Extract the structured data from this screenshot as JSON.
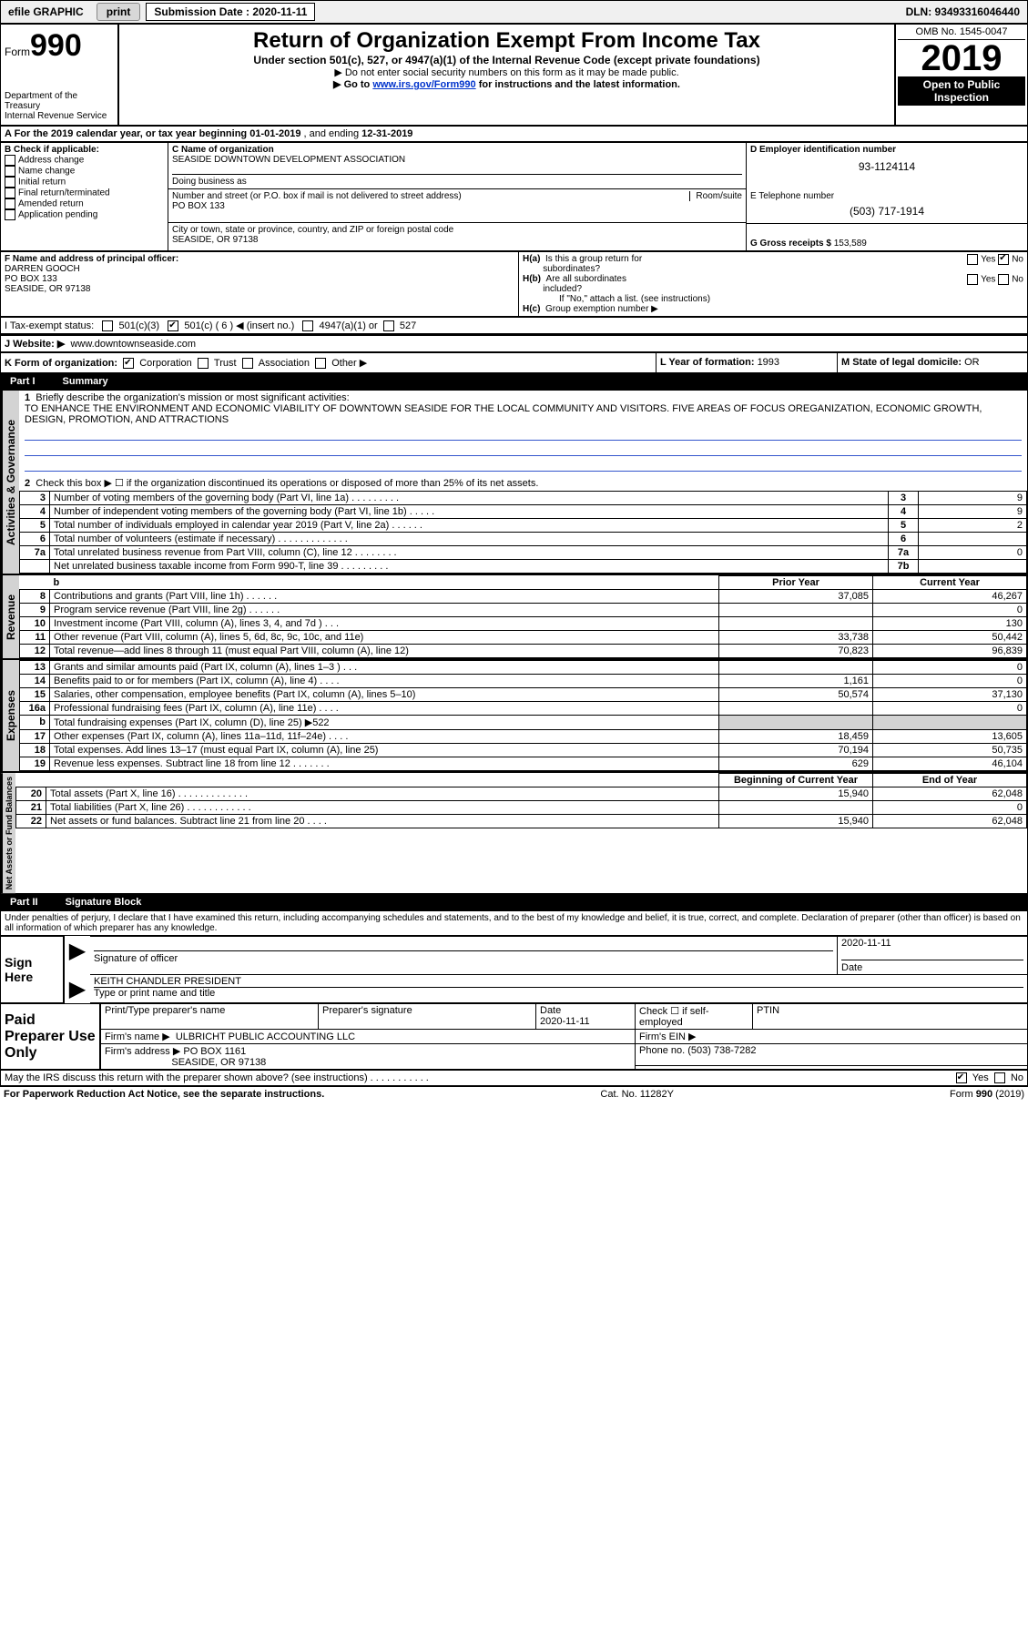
{
  "topbar": {
    "efile_label": "efile GRAPHIC",
    "print_btn": "print",
    "submission_label": "Submission Date : 2020-11-11",
    "dln": "DLN: 93493316046440"
  },
  "header": {
    "form_word": "Form",
    "form_num": "990",
    "dept_line1": "Department of the Treasury",
    "dept_line2": "Internal Revenue Service",
    "title": "Return of Organization Exempt From Income Tax",
    "subtitle": "Under section 501(c), 527, or 4947(a)(1) of the Internal Revenue Code (except private foundations)",
    "note1": "▶ Do not enter social security numbers on this form as it may be made public.",
    "note2_pre": "▶ Go to ",
    "note2_link": "www.irs.gov/Form990",
    "note2_post": " for instructions and the latest information.",
    "omb": "OMB No. 1545-0047",
    "year": "2019",
    "open_public1": "Open to Public",
    "open_public2": "Inspection"
  },
  "sectionA": {
    "label": "A For the 2019 calendar year, or tax year beginning ",
    "begin": "01-01-2019",
    "mid": " , and ending ",
    "end": "12-31-2019"
  },
  "sectionB": {
    "label": "B Check if applicable:",
    "addr_change": "Address change",
    "name_change": "Name change",
    "initial_return": "Initial return",
    "final_return": "Final return/terminated",
    "amended_return": "Amended return",
    "app_pending": "Application pending"
  },
  "sectionC": {
    "label": "C Name of organization",
    "org_name": "SEASIDE DOWNTOWN DEVELOPMENT ASSOCIATION",
    "dba_label": "Doing business as",
    "dba": "",
    "street_label": "Number and street (or P.O. box if mail is not delivered to street address)",
    "room_label": "Room/suite",
    "street": "PO BOX 133",
    "city_label": "City or town, state or province, country, and ZIP or foreign postal code",
    "city": "SEASIDE, OR  97138"
  },
  "sectionD": {
    "label": "D Employer identification number",
    "ein": "93-1124114"
  },
  "sectionE": {
    "label": "E Telephone number",
    "phone": "(503) 717-1914"
  },
  "sectionG": {
    "label": "G Gross receipts $ ",
    "value": "153,589"
  },
  "sectionF": {
    "label": "F Name and address of principal officer:",
    "name": "DARREN GOOCH",
    "street": "PO BOX 133",
    "city": "SEASIDE, OR  97138"
  },
  "sectionH": {
    "a_label": "H(a)  Is this a group return for subordinates?",
    "b_label": "H(b)  Are all subordinates included?",
    "b_note": "If \"No,\" attach a list. (see instructions)",
    "c_label": "H(c)  Group exemption number ▶",
    "yes": "Yes",
    "no": "No"
  },
  "sectionI": {
    "label": "I   Tax-exempt status:",
    "c3": "501(c)(3)",
    "c_other": "501(c) ( 6 ) ◀ (insert no.)",
    "a1": "4947(a)(1) or",
    "s527": "527"
  },
  "sectionJ": {
    "label": "J   Website: ▶",
    "url": "www.downtownseaside.com"
  },
  "sectionK": {
    "label": "K Form of organization:",
    "corp": "Corporation",
    "trust": "Trust",
    "assoc": "Association",
    "other": "Other ▶"
  },
  "sectionL": {
    "label": "L Year of formation: ",
    "value": "1993"
  },
  "sectionM": {
    "label": "M State of legal domicile: ",
    "value": "OR"
  },
  "part1": {
    "num": "Part I",
    "title": "Summary",
    "tab_activities": "Activities & Governance",
    "tab_revenue": "Revenue",
    "tab_expenses": "Expenses",
    "tab_net": "Net Assets or Fund Balances",
    "line1_label": "Briefly describe the organization's mission or most significant activities:",
    "line1_text": "TO ENHANCE THE ENVIRONMENT AND ECONOMIC VIABILITY OF DOWNTOWN SEASIDE FOR THE LOCAL COMMUNITY AND VISITORS. FIVE AREAS OF FOCUS OREGANIZATION, ECONOMIC GROWTH, DESIGN, PROMOTION, AND ATTRACTIONS",
    "line2": "Check this box ▶ ☐ if the organization discontinued its operations or disposed of more than 25% of its net assets.",
    "col_prior": "Prior Year",
    "col_current": "Current Year",
    "col_begin": "Beginning of Current Year",
    "col_end": "End of Year",
    "rows_gov": [
      {
        "n": "3",
        "text": "Number of voting members of the governing body (Part VI, line 1a)  .  .  .  .  .  .  .  .  .",
        "box": "3",
        "val": "9"
      },
      {
        "n": "4",
        "text": "Number of independent voting members of the governing body (Part VI, line 1b)  .  .  .  .  .",
        "box": "4",
        "val": "9"
      },
      {
        "n": "5",
        "text": "Total number of individuals employed in calendar year 2019 (Part V, line 2a)  .  .  .  .  .  .",
        "box": "5",
        "val": "2"
      },
      {
        "n": "6",
        "text": "Total number of volunteers (estimate if necessary)  .  .  .  .  .  .  .  .  .  .  .  .  .",
        "box": "6",
        "val": ""
      },
      {
        "n": "7a",
        "text": "Total unrelated business revenue from Part VIII, column (C), line 12  .  .  .  .  .  .  .  .",
        "box": "7a",
        "val": "0"
      },
      {
        "n": "",
        "text": "Net unrelated business taxable income from Form 990-T, line 39  .  .  .  .  .  .  .  .  .",
        "box": "7b",
        "val": ""
      }
    ],
    "rows_rev": [
      {
        "n": "8",
        "text": "Contributions and grants (Part VIII, line 1h)  .  .  .  .  .  .",
        "prior": "37,085",
        "curr": "46,267"
      },
      {
        "n": "9",
        "text": "Program service revenue (Part VIII, line 2g)  .  .  .  .  .  .",
        "prior": "",
        "curr": "0"
      },
      {
        "n": "10",
        "text": "Investment income (Part VIII, column (A), lines 3, 4, and 7d )  .  .  .",
        "prior": "",
        "curr": "130"
      },
      {
        "n": "11",
        "text": "Other revenue (Part VIII, column (A), lines 5, 6d, 8c, 9c, 10c, and 11e)",
        "prior": "33,738",
        "curr": "50,442"
      },
      {
        "n": "12",
        "text": "Total revenue—add lines 8 through 11 (must equal Part VIII, column (A), line 12)",
        "prior": "70,823",
        "curr": "96,839"
      }
    ],
    "rows_exp": [
      {
        "n": "13",
        "text": "Grants and similar amounts paid (Part IX, column (A), lines 1–3 )  .  .  .",
        "prior": "",
        "curr": "0"
      },
      {
        "n": "14",
        "text": "Benefits paid to or for members (Part IX, column (A), line 4)  .  .  .  .",
        "prior": "1,161",
        "curr": "0"
      },
      {
        "n": "15",
        "text": "Salaries, other compensation, employee benefits (Part IX, column (A), lines 5–10)",
        "prior": "50,574",
        "curr": "37,130"
      },
      {
        "n": "16a",
        "text": "Professional fundraising fees (Part IX, column (A), line 11e)  .  .  .  .",
        "prior": "",
        "curr": "0"
      },
      {
        "n": "b",
        "text": "Total fundraising expenses (Part IX, column (D), line 25) ▶522",
        "prior": "SHADE",
        "curr": "SHADE"
      },
      {
        "n": "17",
        "text": "Other expenses (Part IX, column (A), lines 11a–11d, 11f–24e)  .  .  .  .",
        "prior": "18,459",
        "curr": "13,605"
      },
      {
        "n": "18",
        "text": "Total expenses. Add lines 13–17 (must equal Part IX, column (A), line 25)",
        "prior": "70,194",
        "curr": "50,735"
      },
      {
        "n": "19",
        "text": "Revenue less expenses. Subtract line 18 from line 12  .  .  .  .  .  .  .",
        "prior": "629",
        "curr": "46,104"
      }
    ],
    "rows_net": [
      {
        "n": "20",
        "text": "Total assets (Part X, line 16)  .  .  .  .  .  .  .  .  .  .  .  .  .",
        "prior": "15,940",
        "curr": "62,048"
      },
      {
        "n": "21",
        "text": "Total liabilities (Part X, line 26)  .  .  .  .  .  .  .  .  .  .  .  .",
        "prior": "",
        "curr": "0"
      },
      {
        "n": "22",
        "text": "Net assets or fund balances. Subtract line 21 from line 20  .  .  .  .",
        "prior": "15,940",
        "curr": "62,048"
      }
    ]
  },
  "part2": {
    "num": "Part II",
    "title": "Signature Block",
    "decl": "Under penalties of perjury, I declare that I have examined this return, including accompanying schedules and statements, and to the best of my knowledge and belief, it is true, correct, and complete. Declaration of preparer (other than officer) is based on all information of which preparer has any knowledge.",
    "sign_here": "Sign Here",
    "paid_prep": "Paid Preparer Use Only",
    "sig_officer": "Signature of officer",
    "sig_date": "Date",
    "sig_date_val": "2020-11-11",
    "officer_name": "KEITH CHANDLER  PRESIDENT",
    "officer_name_label": "Type or print name and title",
    "prep_name_label": "Print/Type preparer's name",
    "prep_sig_label": "Preparer's signature",
    "prep_date_label": "Date",
    "prep_date_val": "2020-11-11",
    "check_if": "Check ☐ if self-employed",
    "ptin_label": "PTIN",
    "firm_name_label": "Firm's name    ▶",
    "firm_name": "ULBRICHT PUBLIC ACCOUNTING LLC",
    "firm_ein_label": "Firm's EIN ▶",
    "firm_addr_label": "Firm's address ▶",
    "firm_addr1": "PO BOX 1161",
    "firm_addr2": "SEASIDE, OR  97138",
    "firm_phone_label": "Phone no. ",
    "firm_phone": "(503) 738-7282",
    "discuss": "May the IRS discuss this return with the preparer shown above? (see instructions)  .  .  .  .  .  .  .  .  .  .  .",
    "yes": "Yes",
    "no": "No"
  },
  "footer": {
    "pra": "For Paperwork Reduction Act Notice, see the separate instructions.",
    "cat": "Cat. No. 11282Y",
    "form": "Form 990 (2019)"
  },
  "colors": {
    "link": "#0033cc",
    "shade": "#d3d3d3"
  }
}
